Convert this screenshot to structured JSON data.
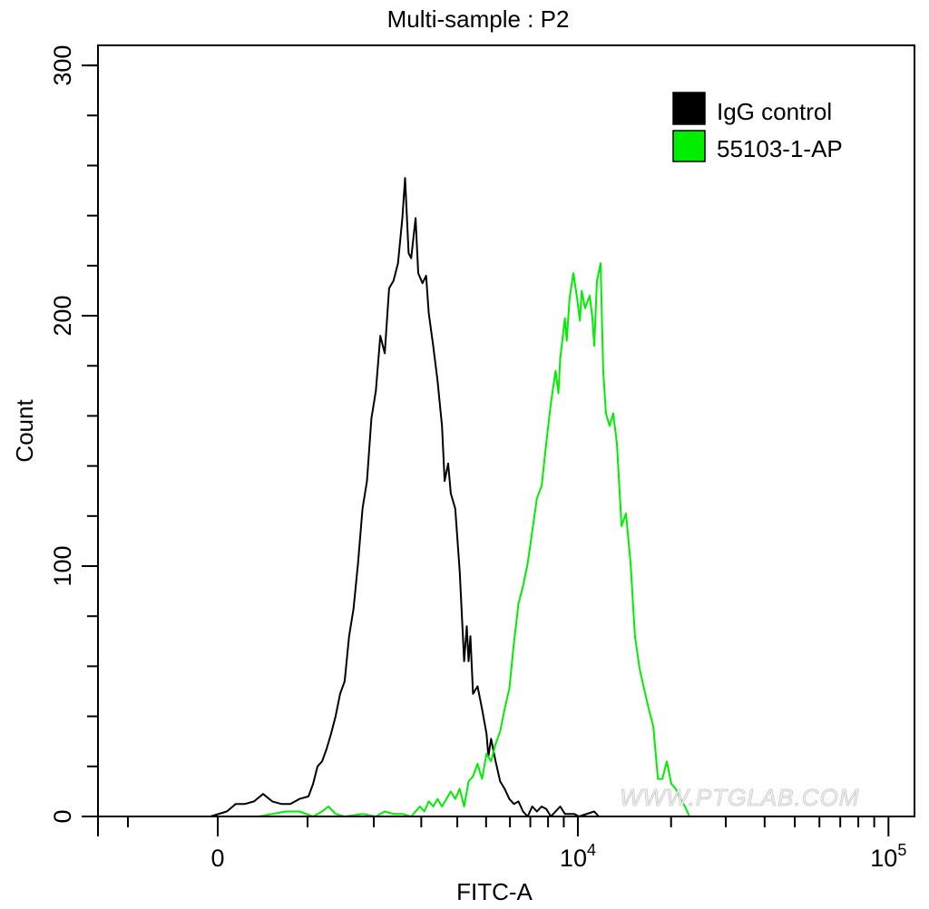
{
  "chart_data": {
    "type": "line",
    "title": "Multi-sample : P2",
    "xlabel": "FITC-A",
    "ylabel": "Count",
    "x_scale": "biexponential",
    "xlim": [
      -1400,
      120000
    ],
    "ylim": [
      0,
      308
    ],
    "grid": false,
    "legend_position": "top-right",
    "x_ticks": [
      {
        "value": 0,
        "base": "0",
        "exp": ""
      },
      {
        "value": 10000,
        "base": "10",
        "exp": "4"
      },
      {
        "value": 100000,
        "base": "10",
        "exp": "5"
      }
    ],
    "x_minor_ticks": [
      -1000,
      1000,
      2000,
      3000,
      4000,
      5000,
      6000,
      7000,
      8000,
      9000,
      20000,
      30000,
      40000,
      50000,
      60000,
      70000,
      80000,
      90000
    ],
    "y_ticks": [
      {
        "value": 0,
        "label": "0"
      },
      {
        "value": 100,
        "label": "100"
      },
      {
        "value": 200,
        "label": "200"
      },
      {
        "value": 300,
        "label": "300"
      }
    ],
    "y_minor_step": 20,
    "series": [
      {
        "name": "IgG control",
        "color": "#000000",
        "x": [
          -75,
          94,
          188,
          284,
          380,
          479,
          580,
          682,
          788,
          898,
          1012,
          1071,
          1130,
          1191,
          1253,
          1316,
          1381,
          1448,
          1516,
          1585,
          1656,
          1728,
          1803,
          1879,
          1957,
          2037,
          2120,
          2204,
          2290,
          2380,
          2471,
          2565,
          2624,
          2702,
          2761,
          2863,
          2926,
          3031,
          3121,
          3188,
          3303,
          3422,
          3545,
          3620,
          3722,
          3801,
          3937,
          4075,
          4220,
          4308,
          4368,
          4429,
          4522,
          4682,
          4847,
          5018,
          5088,
          5195,
          5379,
          5569,
          5765,
          5970,
          6181,
          6399,
          6626,
          6861,
          7105,
          7358,
          7620,
          7890,
          8172,
          8764,
          9076,
          9736,
          10083,
          11298,
          11690
        ],
        "y": [
          0,
          2,
          5,
          5,
          6,
          9,
          6,
          5,
          5,
          7,
          8,
          13,
          20,
          22,
          27,
          33,
          40,
          49,
          54,
          72,
          83,
          101,
          123,
          134,
          159,
          170,
          192,
          185,
          211,
          214,
          221,
          239,
          255,
          225,
          223,
          239,
          217,
          213,
          216,
          201,
          188,
          174,
          156,
          134,
          141,
          129,
          123,
          98,
          62,
          76,
          62,
          72,
          49,
          52,
          43,
          33,
          24,
          31,
          22,
          14,
          11,
          7,
          5,
          6,
          2,
          0,
          4,
          2,
          4,
          3,
          0,
          4,
          1,
          1,
          0,
          2,
          0
        ]
      },
      {
        "name": "55103-1-AP",
        "color": "#00ee00",
        "x": [
          429,
          580,
          735,
          898,
          1071,
          1191,
          1280,
          1381,
          1516,
          1803,
          2037,
          2204,
          2380,
          2565,
          2761,
          2968,
          3076,
          3188,
          3303,
          3422,
          3545,
          3671,
          3801,
          3937,
          4075,
          4220,
          4368,
          4522,
          4682,
          4847,
          5018,
          5195,
          5379,
          5569,
          5765,
          5970,
          6181,
          6399,
          6626,
          6861,
          7105,
          7358,
          7620,
          7890,
          8172,
          8463,
          8642,
          8764,
          9076,
          9200,
          9401,
          9668,
          9940,
          10150,
          10290,
          10556,
          10920,
          11150,
          11298,
          11530,
          11850,
          12082,
          12330,
          12670,
          13010,
          13377,
          13846,
          14308,
          14812,
          15302,
          15834,
          16380,
          16940,
          17528,
          18144,
          18746,
          19376,
          20048,
          20720,
          21434,
          22162,
          22932
        ],
        "y": [
          0,
          1,
          2,
          2,
          0,
          2,
          4,
          1,
          0,
          1,
          0,
          2,
          1,
          1,
          0,
          4,
          2,
          6,
          4,
          7,
          4,
          7,
          10,
          7,
          11,
          4,
          14,
          16,
          21,
          15,
          25,
          22,
          29,
          34,
          43,
          51,
          69,
          85,
          92,
          101,
          114,
          127,
          132,
          149,
          165,
          178,
          169,
          183,
          199,
          190,
          207,
          217,
          207,
          198,
          210,
          203,
          208,
          199,
          188,
          214,
          221,
          178,
          161,
          156,
          161,
          149,
          116,
          121,
          101,
          72,
          59,
          51,
          43,
          36,
          15,
          15,
          22,
          13,
          11,
          7,
          4,
          0
        ]
      }
    ],
    "watermark": "WWW.PTGLAB.COM"
  }
}
